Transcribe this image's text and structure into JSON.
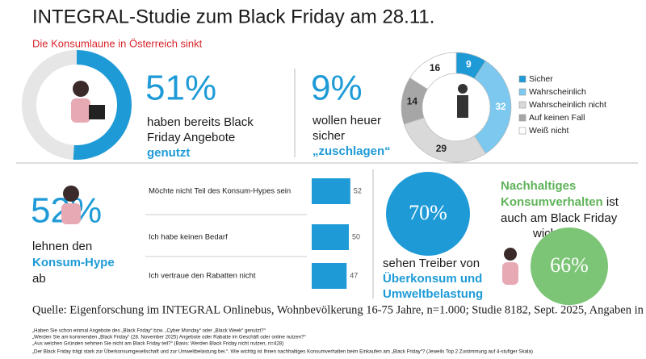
{
  "title": "INTEGRAL-Studie zum Black Friday am 28.11.",
  "subtitle": "Die Konsumlaune in Österreich sinkt",
  "block1": {
    "text": [
      "haben bereits Black",
      "Friday Angebote"
    ],
    "highlight": "genutzt"
  },
  "block2": {
    "stat": "9%",
    "text": [
      "wollen heuer",
      "sicher"
    ],
    "highlight": "„zuschlagen“"
  },
  "block3": {
    "stat": "52%",
    "text": "lehnen den",
    "highlight": "Konsum-Hype",
    "text_after": "ab"
  },
  "block4": {
    "text": "sehen Treiber von",
    "highlight": [
      "Überkonsum und",
      "Umweltbelastung"
    ]
  },
  "block5": {
    "highlight": [
      "Nachhaltiges",
      "Konsumverhalten"
    ],
    "text": [
      "ist",
      "auch am Black Friday",
      "wichtig"
    ]
  },
  "source": "Quelle: Eigenforschung im INTEGRAL Onlinebus, Wohnbevölkerung 16-75 Jahre, n=1.000; Studie 8182, Sept. 2025, Angaben in %",
  "footnotes": [
    "„Haben Sie schon einmal Angebote des „Black Friday“ bzw. „Cyber Monday“ oder „Black Week“ genutzt?“",
    "„Werden Sie am kommenden „Black Friday“ (28. November 2025) Angebote oder Rabatte im Geschäft oder online nutzen?“",
    "„Aus welchen Gründen nehmen Sie nicht am Black Friday teil?“ (Basis: Werden Black Friday nicht nutzen, n=428)",
    "„Der Black Friday trägt stark zur Überkonsumgesellschaft und zur Umweltbelastung bei.“. Wie wichtig ist Ihnen nachhaltiges Konsumverhalten beim Einkaufen am „Black Friday“? (Jeweils Top 2 Zustimmung auf 4-stufiger Skala)"
  ],
  "chart_data": [
    {
      "type": "ring",
      "values": [
        51
      ],
      "value_labels": [
        "51%"
      ],
      "color": "#1e9bd7"
    },
    {
      "type": "donut",
      "categories": [
        "Sicher",
        "Wahrscheinlich",
        "Wahrscheinlich nicht",
        "Auf keinen Fall",
        "Weiß nicht"
      ],
      "values": [
        9,
        32,
        29,
        14,
        16
      ],
      "colors": [
        "#1e9bd7",
        "#7cc8ee",
        "#d9d9d9",
        "#a6a6a6",
        "#ffffff"
      ]
    },
    {
      "type": "hbar",
      "categories": [
        "Möchte nicht Teil des Konsum-Hypes sein",
        "Ich habe keinen Bedarf",
        "Ich vertraue den Rabatten nicht"
      ],
      "values": [
        52,
        50,
        47
      ],
      "color": "#1e9bd7"
    },
    {
      "type": "circle",
      "values": [
        70
      ],
      "value_labels": [
        "70%"
      ],
      "color": "#1e9bd7"
    },
    {
      "type": "circle",
      "values": [
        66
      ],
      "value_labels": [
        "66%"
      ],
      "color": "#7cc576"
    }
  ]
}
